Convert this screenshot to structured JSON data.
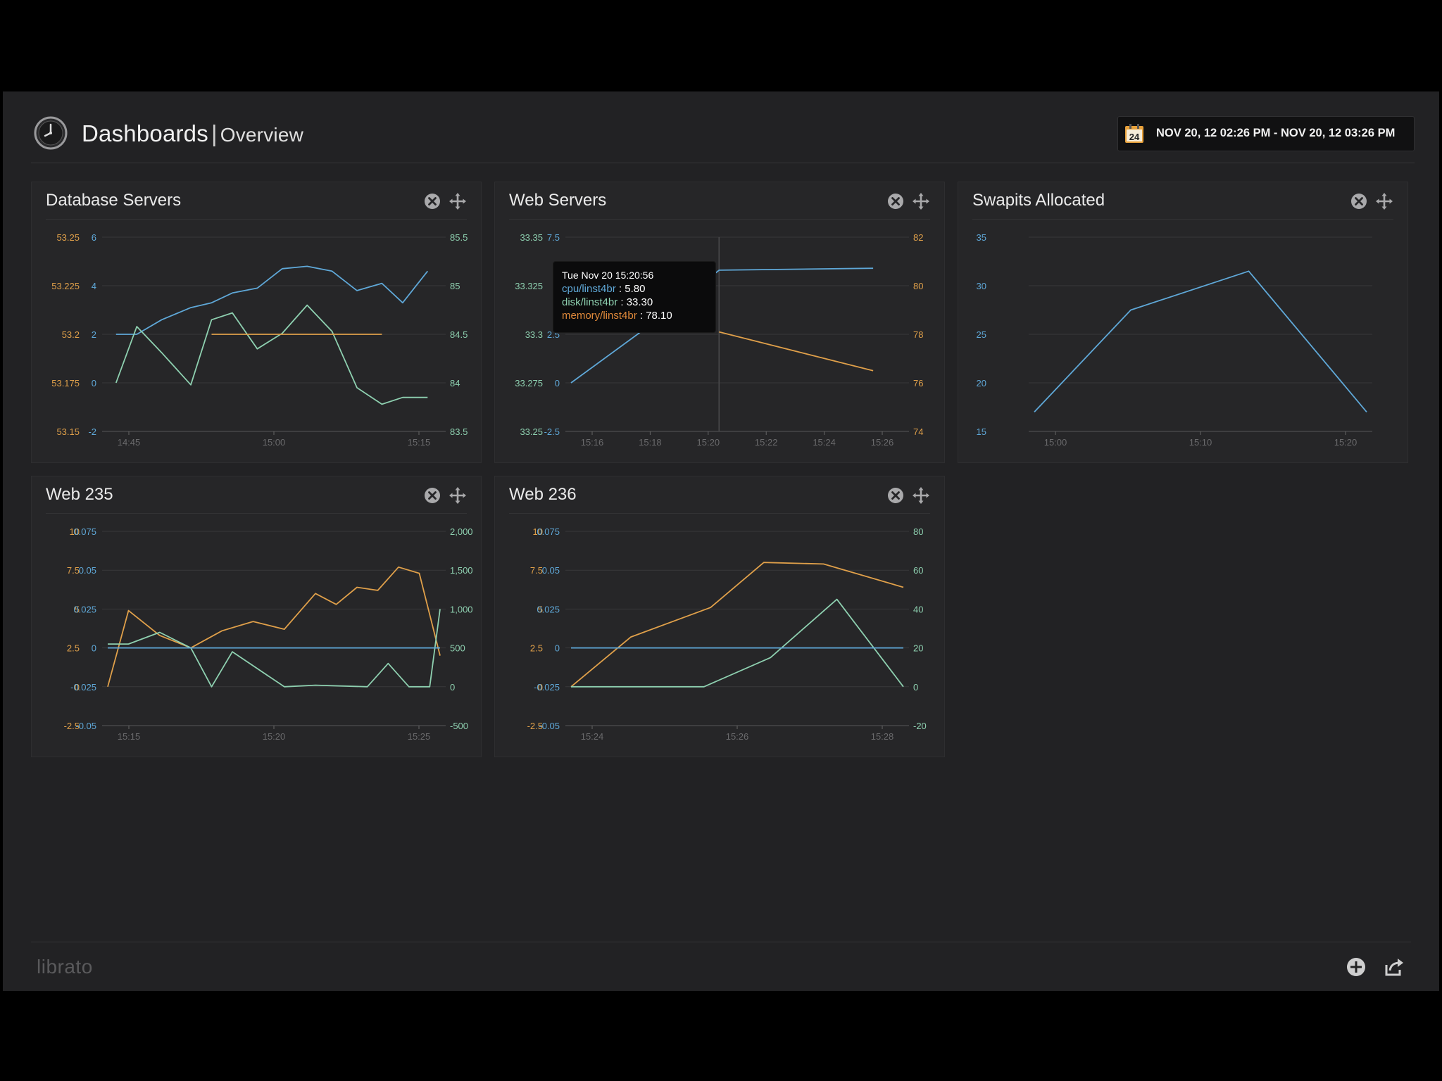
{
  "header": {
    "title": "Dashboards",
    "separator": "|",
    "subtitle": "Overview",
    "date_range": "NOV 20, 12 02:26 PM - NOV 20, 12 03:26 PM",
    "calendar_day": "24"
  },
  "footer": {
    "logo": "librato"
  },
  "colors": {
    "blue": "#5fa8d8",
    "orange": "#e0a04a",
    "green": "#8ed0b0",
    "grid": "#38383a",
    "axis": "#6a6a6c"
  },
  "panels": [
    {
      "title": "Database Servers",
      "chart_data": {
        "type": "line",
        "x_ticks": [
          "14:45",
          "15:00",
          "15:15"
        ],
        "axes": [
          {
            "side": "left1",
            "color": "orange",
            "ticks": [
              "53.25",
              "53.225",
              "53.2",
              "53.175",
              "53.15"
            ],
            "range": [
              53.15,
              53.25
            ]
          },
          {
            "side": "left2",
            "color": "blue",
            "ticks": [
              "6",
              "4",
              "2",
              "0",
              "-2"
            ],
            "range": [
              -2,
              6
            ]
          },
          {
            "side": "right",
            "color": "green",
            "ticks": [
              "85.5",
              "85",
              "84.5",
              "84",
              "83.5"
            ],
            "range": [
              83.5,
              85.5
            ]
          }
        ],
        "x_range": [
          14.5,
          15.3
        ],
        "series": [
          {
            "color": "blue",
            "axis": 1,
            "x": [
              14.52,
              14.57,
              14.63,
              14.7,
              14.75,
              14.8,
              14.86,
              14.92,
              14.98,
              15.04,
              15.1,
              15.16,
              15.21,
              15.27
            ],
            "y": [
              2.0,
              2.0,
              2.6,
              3.1,
              3.3,
              3.7,
              3.9,
              4.7,
              4.8,
              4.6,
              3.8,
              4.1,
              3.3,
              4.6
            ]
          },
          {
            "color": "green",
            "axis": 2,
            "x": [
              14.52,
              14.57,
              14.63,
              14.7,
              14.75,
              14.8,
              14.86,
              14.92,
              14.98,
              15.04,
              15.1,
              15.16,
              15.21,
              15.27
            ],
            "y": [
              84.0,
              84.58,
              84.31,
              83.98,
              84.65,
              84.72,
              84.35,
              84.51,
              84.8,
              84.53,
              83.95,
              83.78,
              83.85,
              83.85
            ]
          },
          {
            "color": "orange",
            "axis": 0,
            "x": [
              14.75,
              15.16
            ],
            "y": [
              53.2,
              53.2
            ]
          }
        ]
      }
    },
    {
      "title": "Web Servers",
      "chart_data": {
        "type": "line",
        "x_ticks": [
          "15:16",
          "15:18",
          "15:20",
          "15:22",
          "15:24",
          "15:26"
        ],
        "axes": [
          {
            "side": "left1",
            "color": "green",
            "ticks": [
              "33.35",
              "33.325",
              "33.3",
              "33.275",
              "33.25"
            ],
            "range": [
              33.25,
              33.35
            ]
          },
          {
            "side": "left2",
            "color": "blue",
            "ticks": [
              "7.5",
              "5",
              "2.5",
              "0",
              "-2.5"
            ],
            "range": [
              -2.5,
              7.5
            ]
          },
          {
            "side": "right",
            "color": "orange",
            "ticks": [
              "82",
              "80",
              "78",
              "76",
              "74"
            ],
            "range": [
              74,
              82
            ]
          }
        ],
        "x_range": [
          15.16,
          15.27
        ],
        "series": [
          {
            "color": "blue",
            "axis": 1,
            "x": [
              15.16,
              15.182,
              15.201,
              15.209,
              15.26
            ],
            "y": [
              0.0,
              2.5,
              4.8,
              5.8,
              5.9
            ]
          },
          {
            "color": "orange",
            "axis": 2,
            "x": [
              15.209,
              15.26
            ],
            "y": [
              78.1,
              76.5
            ]
          }
        ],
        "crosshair_x": 15.209,
        "tooltip": {
          "time": "Tue Nov 20 15:20:56",
          "rows": [
            {
              "metric": "cpu/linst4br",
              "value": "5.80"
            },
            {
              "metric": "disk/linst4br",
              "value": "33.30"
            },
            {
              "metric": "memory/linst4br",
              "value": "78.10"
            }
          ]
        }
      }
    },
    {
      "title": "Swapits Allocated",
      "chart_data": {
        "type": "line",
        "x_ticks": [
          "15:00",
          "15:10",
          "15:20"
        ],
        "axes": [
          {
            "side": "left1",
            "color": "blue",
            "ticks": [
              "35",
              "30",
              "25",
              "20",
              "15"
            ],
            "range": [
              15,
              35
            ]
          }
        ],
        "x_range": [
          14.91,
          15.22
        ],
        "series": [
          {
            "color": "blue",
            "axis": 0,
            "x": [
              14.91,
              15.0,
              15.11,
              15.22
            ],
            "y": [
              17,
              27.5,
              31.5,
              17
            ]
          }
        ]
      }
    },
    {
      "title": "Web 235",
      "chart_data": {
        "type": "line",
        "x_ticks": [
          "15:15",
          "15:20",
          "15:25"
        ],
        "axes": [
          {
            "side": "left1",
            "color": "orange",
            "ticks": [
              "10",
              "7.5",
              "5",
              "2.5",
              "0",
              "-2.5"
            ],
            "range": [
              -2.5,
              10
            ]
          },
          {
            "side": "left2",
            "color": "blue",
            "ticks": [
              "0.075",
              "0.05",
              "0.025",
              "0",
              "-0.025",
              "-0.05"
            ],
            "range": [
              -0.05,
              0.075
            ]
          },
          {
            "side": "right",
            "color": "green",
            "ticks": [
              "2,000",
              "1,500",
              "1,000",
              "500",
              "0",
              "-500"
            ],
            "range": [
              -500,
              2000
            ]
          }
        ],
        "x_range": [
          15.12,
          15.28
        ],
        "series": [
          {
            "color": "orange",
            "axis": 0,
            "x": [
              15.12,
              15.13,
              15.145,
              15.16,
              15.175,
              15.19,
              15.205,
              15.22,
              15.23,
              15.24,
              15.25,
              15.26,
              15.27,
              15.28
            ],
            "y": [
              0.0,
              4.9,
              3.3,
              2.5,
              3.6,
              4.2,
              3.7,
              6.0,
              5.3,
              6.4,
              6.2,
              7.7,
              7.3,
              2.0
            ]
          },
          {
            "color": "green",
            "axis": 2,
            "x": [
              15.12,
              15.13,
              15.145,
              15.16,
              15.17,
              15.18,
              15.205,
              15.22,
              15.245,
              15.255,
              15.265,
              15.275,
              15.28
            ],
            "y": [
              550,
              550,
              700,
              500,
              0,
              450,
              0,
              20,
              0,
              300,
              0,
              0,
              1000
            ]
          },
          {
            "color": "blue",
            "axis": 1,
            "x": [
              15.12,
              15.28
            ],
            "y": [
              0.0,
              0.0
            ]
          }
        ]
      }
    },
    {
      "title": "Web 236",
      "chart_data": {
        "type": "line",
        "x_ticks": [
          "15:24",
          "15:26",
          "15:28"
        ],
        "axes": [
          {
            "side": "left1",
            "color": "orange",
            "ticks": [
              "10",
              "7.5",
              "5",
              "2.5",
              "0",
              "-2.5"
            ],
            "range": [
              -2.5,
              10
            ]
          },
          {
            "side": "left2",
            "color": "blue",
            "ticks": [
              "0.075",
              "0.05",
              "0.025",
              "0",
              "-0.025",
              "-0.05"
            ],
            "range": [
              -0.05,
              0.075
            ]
          },
          {
            "side": "right",
            "color": "green",
            "ticks": [
              "80",
              "60",
              "40",
              "20",
              "0",
              "-20"
            ],
            "range": [
              -20,
              80
            ]
          }
        ],
        "x_range": [
          15.23,
          15.28
        ],
        "series": [
          {
            "color": "orange",
            "axis": 0,
            "x": [
              15.23,
              15.239,
              15.251,
              15.259,
              15.268,
              15.28
            ],
            "y": [
              0.0,
              3.2,
              5.1,
              8.0,
              7.9,
              6.4
            ]
          },
          {
            "color": "green",
            "axis": 2,
            "x": [
              15.23,
              15.25,
              15.26,
              15.27,
              15.28
            ],
            "y": [
              0,
              0,
              15,
              45,
              0
            ]
          },
          {
            "color": "blue",
            "axis": 1,
            "x": [
              15.23,
              15.28
            ],
            "y": [
              0.0,
              0.0
            ]
          }
        ]
      }
    }
  ]
}
